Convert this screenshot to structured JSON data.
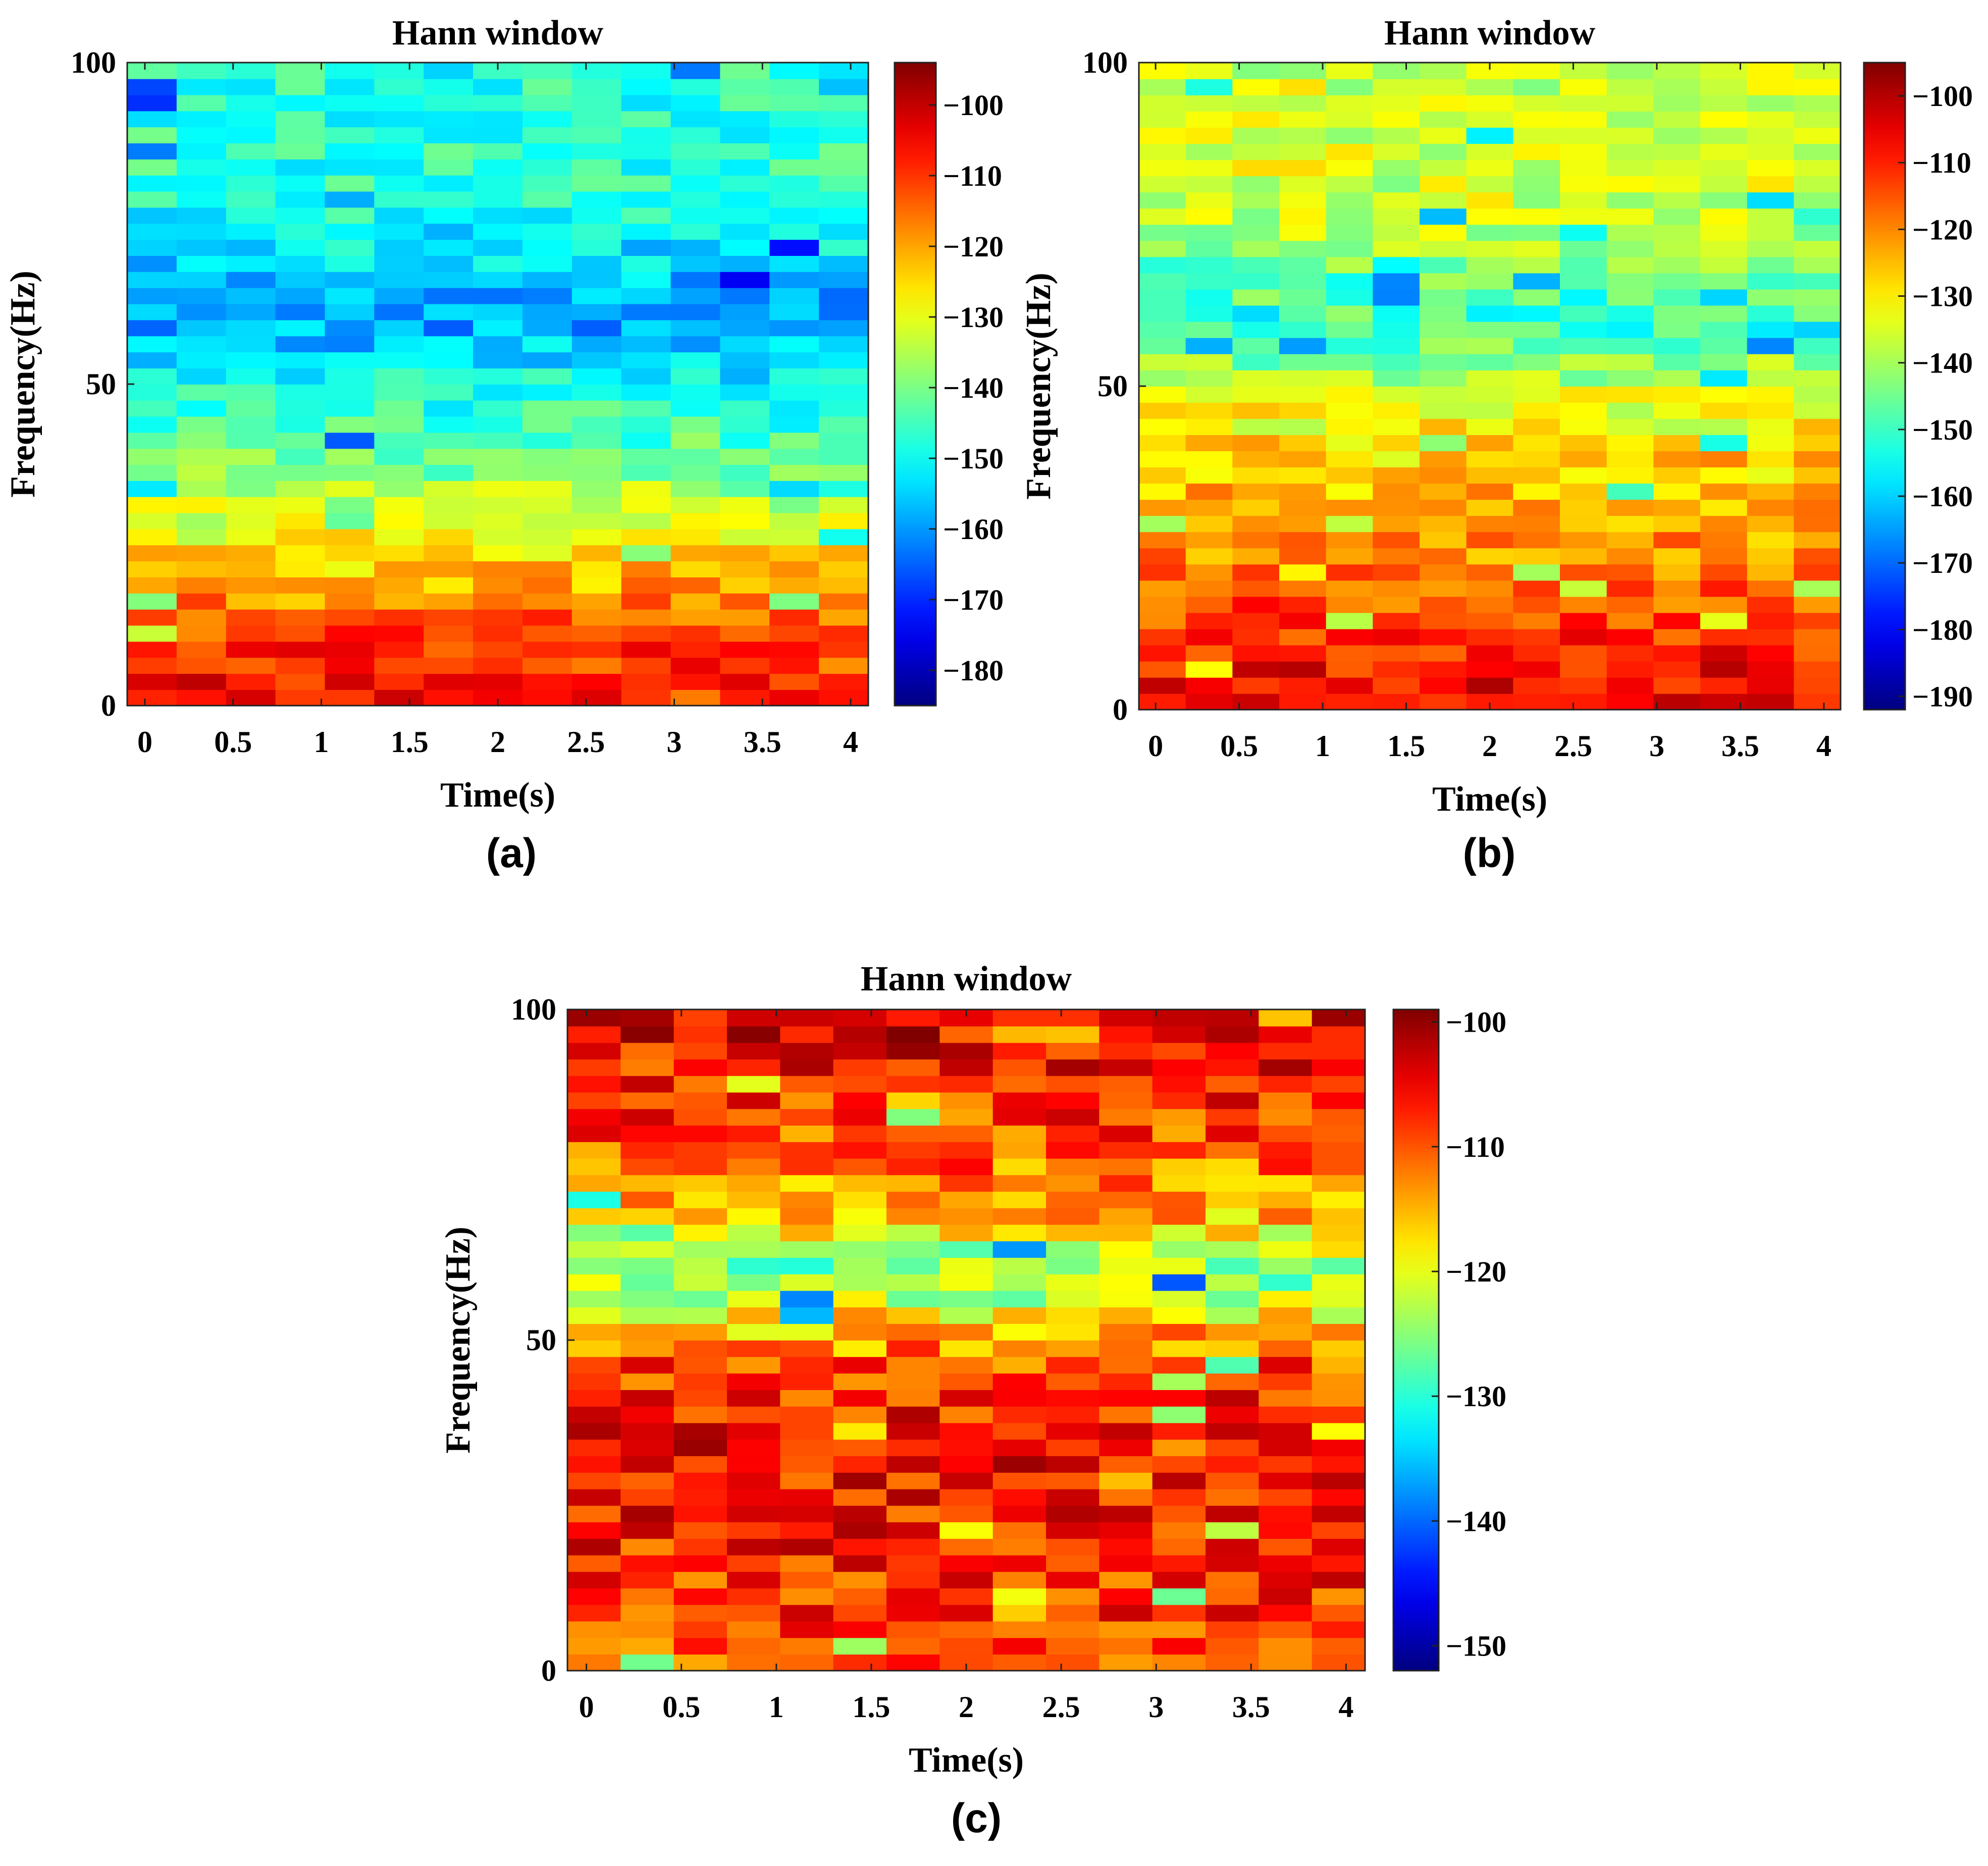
{
  "chart_data": [
    {
      "panel_label": "(a)",
      "type": "heatmap",
      "title": "Hann window",
      "xlabel": "Time(s)",
      "ylabel": "Frequency(Hz)",
      "xlim": [
        -0.1,
        4.1
      ],
      "ylim": [
        0,
        100
      ],
      "xticks": [
        0,
        0.5,
        1,
        1.5,
        2,
        2.5,
        3,
        3.5,
        4
      ],
      "xtick_labels": [
        "0",
        "0.5",
        "1",
        "1.5",
        "2",
        "2.5",
        "3",
        "3.5",
        "4"
      ],
      "yticks": [
        0,
        50,
        100
      ],
      "ytick_labels": [
        "0",
        "50",
        "100"
      ],
      "colorbar": {
        "range": [
          -185,
          -94
        ],
        "ticks": [
          -100,
          -110,
          -120,
          -130,
          -140,
          -150,
          -160,
          -170,
          -180
        ],
        "tick_labels": [
          "−100",
          "−110",
          "−120",
          "−130",
          "−140",
          "−150",
          "−160",
          "−170",
          "−180"
        ],
        "colormap": "jet"
      },
      "time_bins": 15,
      "freq_bins": 40,
      "seed": 11,
      "profile": [
        {
          "f": 0,
          "v": -104
        },
        {
          "f": 10,
          "v": -110
        },
        {
          "f": 20,
          "v": -122
        },
        {
          "f": 30,
          "v": -132
        },
        {
          "f": 40,
          "v": -143
        },
        {
          "f": 50,
          "v": -150
        },
        {
          "f": 60,
          "v": -160
        },
        {
          "f": 65,
          "v": -157
        },
        {
          "f": 75,
          "v": -150
        },
        {
          "f": 85,
          "v": -147
        },
        {
          "f": 100,
          "v": -148
        }
      ],
      "noise": 7
    },
    {
      "panel_label": "(b)",
      "type": "heatmap",
      "title": "Hann window",
      "xlabel": "Time(s)",
      "ylabel": "Frequency(Hz)",
      "xlim": [
        -0.1,
        4.1
      ],
      "ylim": [
        0,
        100
      ],
      "xticks": [
        0,
        0.5,
        1,
        1.5,
        2,
        2.5,
        3,
        3.5,
        4
      ],
      "xtick_labels": [
        "0",
        "0.5",
        "1",
        "1.5",
        "2",
        "2.5",
        "3",
        "3.5",
        "4"
      ],
      "yticks": [
        0,
        50,
        100
      ],
      "ytick_labels": [
        "0",
        "50",
        "100"
      ],
      "colorbar": {
        "range": [
          -192,
          -95
        ],
        "ticks": [
          -100,
          -110,
          -120,
          -130,
          -140,
          -150,
          -160,
          -170,
          -180,
          -190
        ],
        "tick_labels": [
          "−100",
          "−110",
          "−120",
          "−130",
          "−140",
          "−150",
          "−160",
          "−170",
          "−180",
          "−190"
        ],
        "colormap": "jet"
      },
      "time_bins": 15,
      "freq_bins": 40,
      "seed": 23,
      "profile": [
        {
          "f": 0,
          "v": -105
        },
        {
          "f": 10,
          "v": -110
        },
        {
          "f": 20,
          "v": -118
        },
        {
          "f": 30,
          "v": -122
        },
        {
          "f": 40,
          "v": -128
        },
        {
          "f": 50,
          "v": -136
        },
        {
          "f": 58,
          "v": -150
        },
        {
          "f": 65,
          "v": -148
        },
        {
          "f": 75,
          "v": -138
        },
        {
          "f": 85,
          "v": -135
        },
        {
          "f": 100,
          "v": -136
        }
      ],
      "noise": 8
    },
    {
      "panel_label": "(c)",
      "type": "heatmap",
      "title": "Hann window",
      "xlabel": "Time(s)",
      "ylabel": "Frequency(Hz)",
      "xlim": [
        -0.1,
        4.1
      ],
      "ylim": [
        0,
        100
      ],
      "xticks": [
        0,
        0.5,
        1,
        1.5,
        2,
        2.5,
        3,
        3.5,
        4
      ],
      "xtick_labels": [
        "0",
        "0.5",
        "1",
        "1.5",
        "2",
        "2.5",
        "3",
        "3.5",
        "4"
      ],
      "yticks": [
        0,
        50,
        100
      ],
      "ytick_labels": [
        "0",
        "50",
        "100"
      ],
      "colorbar": {
        "range": [
          -152,
          -99
        ],
        "ticks": [
          -100,
          -110,
          -120,
          -130,
          -140,
          -150
        ],
        "tick_labels": [
          "−100",
          "−110",
          "−120",
          "−130",
          "−140",
          "−150"
        ],
        "colormap": "jet"
      },
      "time_bins": 15,
      "freq_bins": 40,
      "seed": 37,
      "profile": [
        {
          "f": 0,
          "v": -109
        },
        {
          "f": 20,
          "v": -107
        },
        {
          "f": 35,
          "v": -106
        },
        {
          "f": 45,
          "v": -108
        },
        {
          "f": 52,
          "v": -116
        },
        {
          "f": 58,
          "v": -125
        },
        {
          "f": 63,
          "v": -124
        },
        {
          "f": 70,
          "v": -114
        },
        {
          "f": 85,
          "v": -108
        },
        {
          "f": 100,
          "v": -104
        }
      ],
      "noise": 6
    }
  ]
}
